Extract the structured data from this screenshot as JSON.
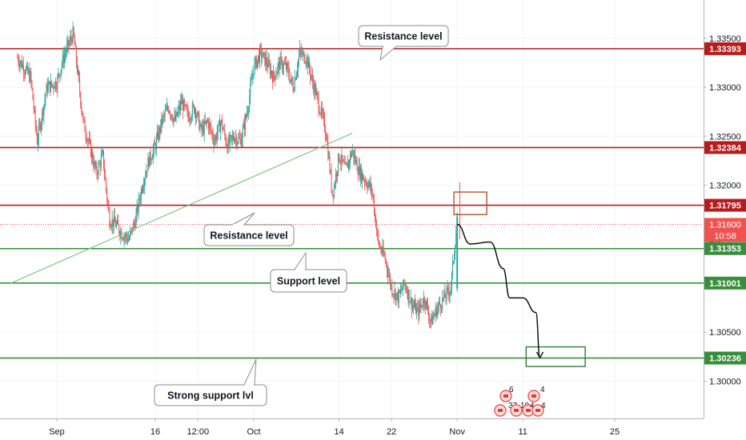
{
  "chart_data": {
    "type": "candlestick",
    "title": "",
    "xlabel": "",
    "ylabel": "",
    "ylim": [
      1.2962,
      1.3389
    ],
    "x_ticks": [
      {
        "label": "Sep",
        "day": 0
      },
      {
        "label": "16",
        "day": 15
      },
      {
        "label": "12:00",
        "day": 21.5
      },
      {
        "label": "Oct",
        "day": 30
      },
      {
        "label": "14",
        "day": 43
      },
      {
        "label": "22",
        "day": 51
      },
      {
        "label": "Nov",
        "day": 61
      },
      {
        "label": "11",
        "day": 71
      },
      {
        "label": "25",
        "day": 85
      }
    ],
    "y_ticks": [
      "1.33500",
      "1.33000",
      "1.32500",
      "1.32000",
      "1.30500",
      "1.30000"
    ],
    "horizontal_levels": [
      {
        "value": 1.33393,
        "label": "1.33393",
        "color": "#b71c1c"
      },
      {
        "value": 1.32384,
        "label": "1.32384",
        "color": "#b71c1c"
      },
      {
        "value": 1.31795,
        "label": "1.31795",
        "color": "#b71c1c"
      },
      {
        "value": 1.31353,
        "label": "1.31353",
        "color": "#388e3c"
      },
      {
        "value": 1.31001,
        "label": "1.31001",
        "color": "#388e3c"
      },
      {
        "value": 1.30236,
        "label": "1.30236",
        "color": "#388e3c"
      }
    ],
    "current_price": {
      "value": 1.316,
      "label": "1.31600",
      "countdown": "10:58",
      "color": "#ef5350"
    },
    "trendline": {
      "from": {
        "day": -7,
        "price": 1.31
      },
      "to": {
        "day": 45,
        "price": 1.3253
      }
    },
    "price_path": [
      [
        -6,
        1.333
      ],
      [
        -4,
        1.331
      ],
      [
        -3,
        1.3245
      ],
      [
        -1.5,
        1.33
      ],
      [
        0,
        1.3305
      ],
      [
        1,
        1.333
      ],
      [
        2.5,
        1.3355
      ],
      [
        3,
        1.3325
      ],
      [
        4,
        1.3265
      ],
      [
        5,
        1.324
      ],
      [
        6,
        1.3212
      ],
      [
        7,
        1.323
      ],
      [
        8,
        1.3165
      ],
      [
        9,
        1.316
      ],
      [
        10,
        1.315
      ],
      [
        11,
        1.3145
      ],
      [
        12,
        1.3165
      ],
      [
        13,
        1.32
      ],
      [
        14,
        1.3225
      ],
      [
        15,
        1.324
      ],
      [
        16,
        1.3265
      ],
      [
        17,
        1.328
      ],
      [
        18,
        1.3265
      ],
      [
        19,
        1.3285
      ],
      [
        20,
        1.327
      ],
      [
        21,
        1.328
      ],
      [
        22,
        1.3255
      ],
      [
        23,
        1.3265
      ],
      [
        24,
        1.3245
      ],
      [
        25,
        1.3265
      ],
      [
        26,
        1.324
      ],
      [
        27,
        1.325
      ],
      [
        28,
        1.3245
      ],
      [
        29,
        1.3275
      ],
      [
        30,
        1.332
      ],
      [
        31,
        1.3335
      ],
      [
        32,
        1.3325
      ],
      [
        33,
        1.331
      ],
      [
        34,
        1.3325
      ],
      [
        35,
        1.332
      ],
      [
        36,
        1.33
      ],
      [
        37,
        1.3335
      ],
      [
        38,
        1.333
      ],
      [
        39,
        1.3305
      ],
      [
        40,
        1.328
      ],
      [
        41,
        1.3255
      ],
      [
        42,
        1.319
      ],
      [
        43,
        1.323
      ],
      [
        44,
        1.3215
      ],
      [
        45,
        1.3235
      ],
      [
        46,
        1.3215
      ],
      [
        47,
        1.3205
      ],
      [
        48,
        1.3195
      ],
      [
        49,
        1.314
      ],
      [
        50,
        1.3125
      ],
      [
        51,
        1.3095
      ],
      [
        52,
        1.3085
      ],
      [
        53,
        1.31
      ],
      [
        54,
        1.308
      ],
      [
        55,
        1.307
      ],
      [
        56,
        1.3085
      ],
      [
        57,
        1.306
      ],
      [
        58,
        1.3075
      ],
      [
        59,
        1.3085
      ],
      [
        60,
        1.3095
      ],
      [
        61,
        1.3165
      ]
    ],
    "forecast_path": [
      [
        61,
        1.316
      ],
      [
        63,
        1.314
      ],
      [
        66,
        1.3142
      ],
      [
        68,
        1.3115
      ],
      [
        69,
        1.3085
      ],
      [
        71,
        1.3085
      ],
      [
        73,
        1.307
      ],
      [
        73.6,
        1.3024
      ]
    ],
    "boxes": [
      {
        "from": [
          60.5,
          1.3193
        ],
        "to": [
          65.5,
          1.317
        ],
        "color": "#b5542c"
      },
      {
        "from": [
          71.5,
          1.3035
        ],
        "to": [
          80.5,
          1.3015
        ],
        "color": "#2e7d32"
      }
    ],
    "annotations": [
      {
        "text": "Resistance level",
        "pointer_day": 46,
        "pointer_price": 1.3339
      },
      {
        "text": "Resistance level",
        "pointer_day": 24,
        "pointer_price": 1.318
      },
      {
        "text": "Support level",
        "pointer_day": 35,
        "pointer_price": 1.3136
      },
      {
        "text": "Strong support lvl",
        "pointer_day": 29,
        "pointer_price": 1.3024
      }
    ],
    "event_markers": [
      {
        "label": "6"
      },
      {
        "label": "4"
      },
      {
        "label": "37"
      },
      {
        "label": "10"
      },
      {
        "label": "4"
      },
      {
        "label": "4"
      }
    ]
  }
}
